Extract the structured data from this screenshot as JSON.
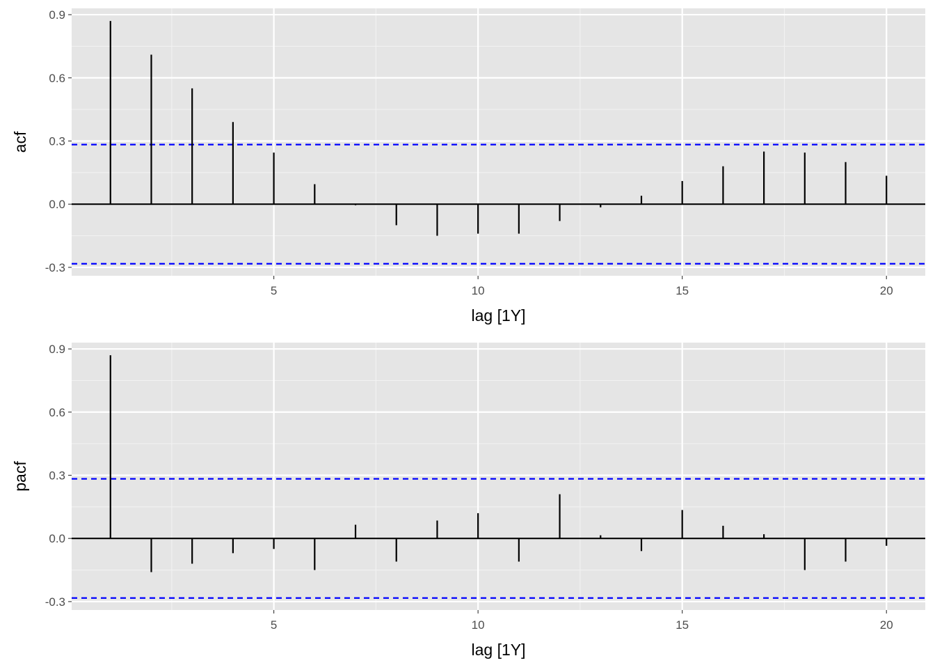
{
  "chart_data": [
    {
      "type": "bar",
      "panel": "acf",
      "ylabel": "acf",
      "xlabel": "lag [1Y]",
      "x": [
        1,
        2,
        3,
        4,
        5,
        6,
        7,
        8,
        9,
        10,
        11,
        12,
        13,
        14,
        15,
        16,
        17,
        18,
        19,
        20
      ],
      "values": [
        0.87,
        0.71,
        0.55,
        0.39,
        0.245,
        0.095,
        -0.005,
        -0.1,
        -0.15,
        -0.14,
        -0.14,
        -0.08,
        -0.015,
        0.04,
        0.11,
        0.18,
        0.25,
        0.245,
        0.2,
        0.135
      ],
      "confidence_bounds": [
        0.283,
        -0.283
      ],
      "xticks": [
        5,
        10,
        15,
        20
      ],
      "xtick_labels": [
        "5",
        "10",
        "15",
        "20"
      ],
      "yticks": [
        -0.3,
        0.0,
        0.3,
        0.6,
        0.9
      ],
      "ytick_labels": [
        "-0.3",
        "0.0",
        "0.3",
        "0.6",
        "0.9"
      ],
      "xlim": [
        0.05,
        20.95
      ],
      "ylim": [
        -0.34,
        0.93
      ],
      "grid": true,
      "bound_color": "#0000ff",
      "bar_color": "#000000",
      "panel_background": "#e5e5e5"
    },
    {
      "type": "bar",
      "panel": "pacf",
      "ylabel": "pacf",
      "xlabel": "lag [1Y]",
      "x": [
        1,
        2,
        3,
        4,
        5,
        6,
        7,
        8,
        9,
        10,
        11,
        12,
        13,
        14,
        15,
        16,
        17,
        18,
        19,
        20
      ],
      "values": [
        0.87,
        -0.16,
        -0.12,
        -0.07,
        -0.05,
        -0.15,
        0.065,
        -0.11,
        0.085,
        0.12,
        -0.11,
        0.21,
        0.015,
        -0.06,
        0.135,
        0.06,
        0.02,
        -0.15,
        -0.11,
        -0.035
      ],
      "confidence_bounds": [
        0.283,
        -0.283
      ],
      "xticks": [
        5,
        10,
        15,
        20
      ],
      "xtick_labels": [
        "5",
        "10",
        "15",
        "20"
      ],
      "yticks": [
        -0.3,
        0.0,
        0.3,
        0.6,
        0.9
      ],
      "ytick_labels": [
        "-0.3",
        "0.0",
        "0.3",
        "0.6",
        "0.9"
      ],
      "xlim": [
        0.05,
        20.95
      ],
      "ylim": [
        -0.34,
        0.93
      ],
      "grid": true,
      "bound_color": "#0000ff",
      "bar_color": "#000000",
      "panel_background": "#e5e5e5"
    }
  ]
}
